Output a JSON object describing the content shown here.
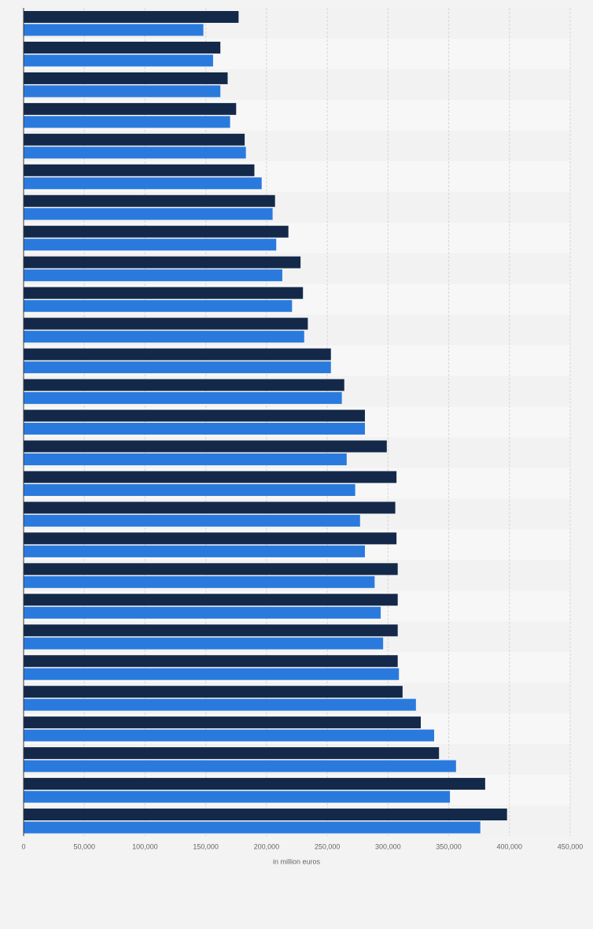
{
  "chart_data": {
    "type": "bar",
    "orientation": "horizontal",
    "x_label": "in million euros",
    "categories": [
      null,
      null,
      null,
      null,
      null,
      null,
      null,
      null,
      null,
      null,
      null,
      null,
      null,
      null,
      null,
      null,
      null,
      null,
      null,
      null,
      null,
      null,
      null,
      null,
      null,
      null,
      null
    ],
    "series": [
      {
        "color": "#14294a",
        "values": [
          177000,
          162000,
          168000,
          175000,
          182000,
          190000,
          207000,
          218000,
          228000,
          230000,
          234000,
          253000,
          264000,
          281000,
          299000,
          307000,
          306000,
          307000,
          308000,
          308000,
          308000,
          308000,
          312000,
          327000,
          342000,
          380000,
          398000
        ]
      },
      {
        "color": "#2a7ade",
        "values": [
          148000,
          156000,
          162000,
          170000,
          183000,
          196000,
          205000,
          208000,
          213000,
          221000,
          231000,
          253000,
          262000,
          281000,
          266000,
          273000,
          277000,
          281000,
          289000,
          294000,
          296000,
          309000,
          323000,
          338000,
          356000,
          351000,
          376000
        ]
      }
    ],
    "xlim": [
      0,
      450000
    ],
    "xticks": [
      0,
      {
        "value": 50000,
        "label": "50,000"
      },
      {
        "value": 100000,
        "label": "100,000"
      },
      {
        "value": 150000,
        "label": "150,000"
      },
      {
        "value": 200000,
        "label": "200,000"
      },
      {
        "value": 250000,
        "label": "250,000"
      },
      {
        "value": 300000,
        "label": "300,000"
      },
      {
        "value": 350000,
        "label": "350,000"
      },
      {
        "value": 400000,
        "label": "400,000"
      },
      {
        "value": 450000,
        "label": "450,000"
      }
    ],
    "grid": true
  }
}
